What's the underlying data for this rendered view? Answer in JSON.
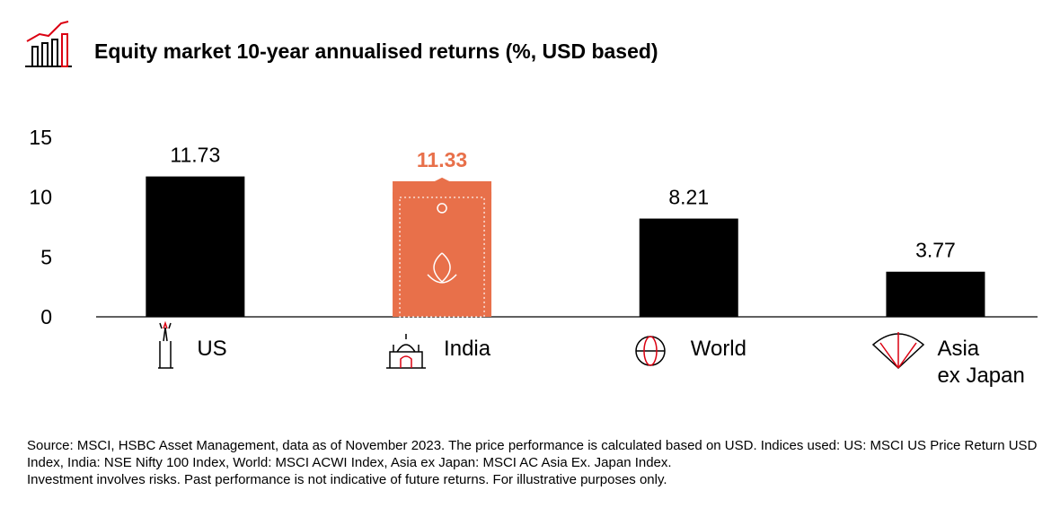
{
  "chart_data": {
    "type": "bar",
    "title": "Equity market 10-year annualised returns (%, USD based)",
    "categories": [
      "US",
      "India",
      "World",
      "Asia\nex Japan"
    ],
    "values": [
      11.73,
      11.33,
      8.21,
      3.77
    ],
    "colors": [
      "#000000",
      "#e8704a",
      "#000000",
      "#000000"
    ],
    "highlight_index": 1,
    "ylim": [
      0,
      15
    ],
    "yticks": [
      0,
      5,
      10,
      15
    ],
    "grid": false,
    "source": "Source: MSCI, HSBC Asset Management, data as of November 2023. The price performance is calculated based on USD. Indices used: US: MSCI US Price Return USD Index, India: NSE Nifty 100 Index, World: MSCI ACWI Index, Asia ex Japan: MSCI AC Asia Ex. Japan Index.",
    "disclaimer": "Investment involves risks. Past performance is not indicative of future returns. For illustrative purposes only."
  }
}
